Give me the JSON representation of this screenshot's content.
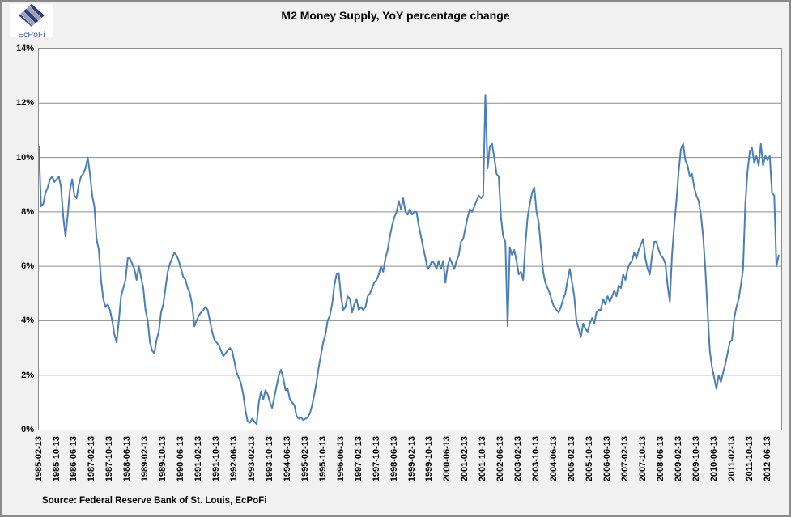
{
  "header": {
    "logo_text": "EcPoFi"
  },
  "footer": {
    "source": "Source: Federal Reserve Bank of St. Louis, EcPoFi"
  },
  "chart_data": {
    "type": "line",
    "title": "M2 Money Supply, YoY percentage change",
    "legend": "none",
    "grid": "horizontal",
    "ylim": [
      0,
      14
    ],
    "y_axis_format": "percent",
    "y_tick_labels": [
      "0%",
      "2%",
      "4%",
      "6%",
      "8%",
      "10%",
      "12%",
      "14%"
    ],
    "x_tick_labels": [
      "1985-02-13",
      "1985-10-13",
      "1986-06-13",
      "1987-02-13",
      "1987-10-13",
      "1988-06-13",
      "1989-02-13",
      "1989-10-13",
      "1990-06-13",
      "1991-02-13",
      "1991-10-13",
      "1992-06-13",
      "1993-02-13",
      "1993-10-13",
      "1994-06-13",
      "1995-02-13",
      "1995-10-13",
      "1996-06-13",
      "1997-02-13",
      "1997-10-13",
      "1998-06-13",
      "1999-02-13",
      "1999-10-13",
      "2000-06-13",
      "2001-02-13",
      "2001-10-13",
      "2002-06-13",
      "2003-02-13",
      "2003-10-13",
      "2004-06-13",
      "2005-02-13",
      "2005-10-13",
      "2006-06-13",
      "2007-02-13",
      "2007-10-13",
      "2008-06-13",
      "2009-02-13",
      "2009-10-13",
      "2010-06-13",
      "2011-02-13",
      "2011-10-13",
      "2012-06-13"
    ],
    "line_color": "#4A7EBB",
    "grid_color": "#8C8C8C",
    "series": [
      {
        "name": "M2 Money Supply YoY % change",
        "x_start": "1985-02",
        "x_end": "2012-11",
        "x_step": "1 month (approximated from weekly line)",
        "values": [
          10.4,
          8.2,
          8.3,
          8.7,
          8.9,
          9.2,
          9.3,
          9.1,
          9.2,
          9.3,
          8.9,
          7.8,
          7.1,
          7.9,
          8.8,
          9.2,
          8.6,
          8.5,
          9.0,
          9.3,
          9.4,
          9.6,
          10.0,
          9.4,
          8.6,
          8.2,
          7.0,
          6.6,
          5.5,
          4.8,
          4.5,
          4.6,
          4.4,
          4.0,
          3.5,
          3.2,
          4.0,
          4.9,
          5.2,
          5.5,
          6.3,
          6.3,
          6.1,
          5.9,
          5.5,
          6.0,
          5.6,
          5.2,
          4.4,
          4.0,
          3.2,
          2.9,
          2.8,
          3.3,
          3.6,
          4.3,
          4.6,
          5.2,
          5.8,
          6.1,
          6.3,
          6.5,
          6.4,
          6.2,
          5.9,
          5.6,
          5.5,
          5.2,
          5.0,
          4.6,
          3.8,
          4.0,
          4.2,
          4.3,
          4.4,
          4.5,
          4.4,
          4.0,
          3.6,
          3.3,
          3.2,
          3.1,
          2.9,
          2.7,
          2.8,
          2.9,
          3.0,
          2.9,
          2.5,
          2.1,
          1.9,
          1.7,
          1.3,
          0.7,
          0.3,
          0.25,
          0.4,
          0.3,
          0.2,
          1.0,
          1.4,
          1.1,
          1.45,
          1.3,
          1.0,
          0.8,
          1.2,
          1.6,
          2.0,
          2.2,
          1.9,
          1.45,
          1.5,
          1.1,
          1.0,
          0.9,
          0.5,
          0.4,
          0.45,
          0.35,
          0.4,
          0.45,
          0.6,
          0.9,
          1.3,
          1.75,
          2.3,
          2.75,
          3.2,
          3.5,
          4.0,
          4.2,
          4.6,
          5.3,
          5.7,
          5.75,
          4.9,
          4.4,
          4.5,
          4.9,
          4.8,
          4.3,
          4.6,
          4.8,
          4.4,
          4.5,
          4.4,
          4.5,
          4.9,
          5.0,
          5.2,
          5.4,
          5.5,
          5.7,
          6.0,
          5.8,
          6.3,
          6.6,
          7.1,
          7.5,
          7.8,
          8.0,
          8.4,
          8.1,
          8.5,
          8.0,
          7.9,
          8.1,
          7.9,
          8.0,
          8.0,
          7.5,
          7.1,
          6.7,
          6.3,
          5.9,
          6.0,
          6.2,
          6.1,
          5.9,
          6.2,
          5.9,
          6.2,
          5.4,
          6.0,
          6.3,
          6.1,
          5.9,
          6.2,
          6.4,
          6.9,
          7.0,
          7.4,
          7.8,
          8.1,
          8.0,
          8.2,
          8.4,
          8.6,
          8.5,
          8.6,
          12.3,
          9.6,
          10.4,
          10.5,
          10.0,
          9.4,
          9.3,
          7.8,
          7.1,
          6.9,
          3.8,
          6.7,
          6.4,
          6.6,
          6.2,
          5.7,
          5.8,
          5.5,
          6.8,
          7.8,
          8.3,
          8.7,
          8.9,
          8.0,
          7.6,
          6.7,
          5.8,
          5.4,
          5.2,
          5.0,
          4.7,
          4.5,
          4.4,
          4.3,
          4.5,
          4.8,
          5.0,
          5.5,
          5.9,
          5.4,
          4.9,
          4.0,
          3.7,
          3.4,
          3.9,
          3.7,
          3.6,
          3.9,
          4.1,
          3.9,
          4.3,
          4.4,
          4.4,
          4.8,
          4.6,
          4.9,
          4.7,
          4.9,
          5.1,
          4.9,
          5.3,
          5.2,
          5.7,
          5.5,
          5.9,
          6.1,
          6.2,
          6.5,
          6.3,
          6.6,
          6.8,
          7.0,
          6.3,
          5.9,
          5.7,
          6.4,
          6.9,
          6.9,
          6.6,
          6.4,
          6.3,
          6.1,
          5.3,
          4.7,
          6.4,
          7.5,
          8.4,
          9.5,
          10.3,
          10.5,
          9.9,
          9.7,
          9.3,
          9.4,
          8.9,
          8.6,
          8.4,
          7.9,
          7.1,
          5.9,
          4.4,
          2.9,
          2.3,
          1.9,
          1.5,
          2.0,
          1.75,
          2.1,
          2.4,
          2.8,
          3.2,
          3.3,
          4.1,
          4.5,
          4.8,
          5.3,
          5.9,
          8.3,
          9.5,
          10.2,
          10.35,
          9.8,
          10.05,
          9.7,
          10.5,
          9.7,
          10.05,
          9.9,
          10.05,
          8.7,
          8.6,
          6.0,
          6.4
        ]
      }
    ]
  }
}
